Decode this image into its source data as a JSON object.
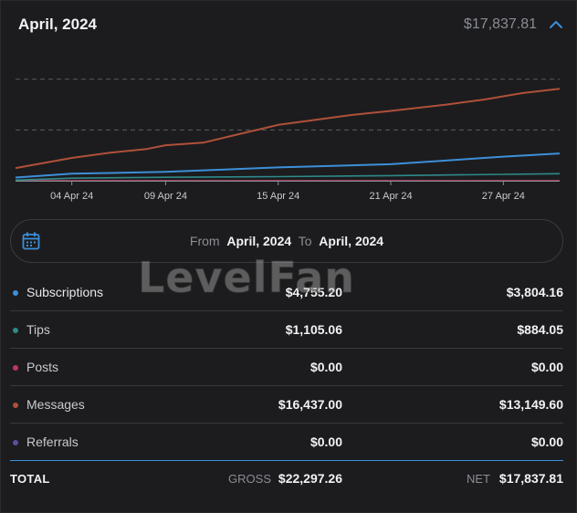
{
  "header": {
    "month": "April, 2024",
    "total": "$17,837.81",
    "collapse_icon": "chevron-up-icon"
  },
  "colors": {
    "subscriptions": "#3d8fd9",
    "tips": "#2f8a8a",
    "posts": "#c0395a",
    "messages": "#b0503a",
    "referrals": "#5a4fa0",
    "accent": "#3d8fd9"
  },
  "chart_data": {
    "type": "line",
    "x_ticks": [
      "04 Apr 24",
      "09 Apr 24",
      "15 Apr 24",
      "21 Apr 24",
      "27 Apr 24"
    ],
    "x_tick_days": [
      4,
      9,
      15,
      21,
      27
    ],
    "x_range": [
      1,
      30
    ],
    "ylim": [
      0,
      22000
    ],
    "gridlines_y": [
      8000,
      16000
    ],
    "series": [
      {
        "name": "Messages",
        "color": "#b0503a",
        "points": [
          [
            1,
            2000
          ],
          [
            4,
            3600
          ],
          [
            6,
            4400
          ],
          [
            8,
            5000
          ],
          [
            9,
            5600
          ],
          [
            11,
            6000
          ],
          [
            13,
            7400
          ],
          [
            15,
            8800
          ],
          [
            17,
            9600
          ],
          [
            19,
            10400
          ],
          [
            21,
            11000
          ],
          [
            24,
            12000
          ],
          [
            26,
            12800
          ],
          [
            28,
            13800
          ],
          [
            30,
            14500
          ]
        ]
      },
      {
        "name": "Subscriptions",
        "color": "#3d8fd9",
        "points": [
          [
            1,
            500
          ],
          [
            4,
            1100
          ],
          [
            9,
            1400
          ],
          [
            15,
            2100
          ],
          [
            21,
            2600
          ],
          [
            27,
            3800
          ],
          [
            30,
            4300
          ]
        ]
      },
      {
        "name": "Tips",
        "color": "#2f8a8a",
        "points": [
          [
            1,
            100
          ],
          [
            4,
            400
          ],
          [
            9,
            550
          ],
          [
            15,
            650
          ],
          [
            21,
            800
          ],
          [
            27,
            1000
          ],
          [
            30,
            1100
          ]
        ]
      },
      {
        "name": "Posts",
        "color": "#c0395a",
        "points": [
          [
            1,
            0
          ],
          [
            30,
            0
          ]
        ]
      },
      {
        "name": "Referrals",
        "color": "#5a4fa0",
        "points": [
          [
            1,
            0
          ],
          [
            30,
            0
          ]
        ]
      }
    ]
  },
  "range": {
    "from_label": "From",
    "from_value": "April, 2024",
    "to_label": "To",
    "to_value": "April, 2024",
    "calendar_icon": "calendar-icon"
  },
  "rows": [
    {
      "label": "Subscriptions",
      "gross": "$4,755.20",
      "net": "$3,804.16"
    },
    {
      "label": "Tips",
      "gross": "$1,105.06",
      "net": "$884.05"
    },
    {
      "label": "Posts",
      "gross": "$0.00",
      "net": "$0.00"
    },
    {
      "label": "Messages",
      "gross": "$16,437.00",
      "net": "$13,149.60"
    },
    {
      "label": "Referrals",
      "gross": "$0.00",
      "net": "$0.00"
    }
  ],
  "total": {
    "label": "TOTAL",
    "gross_label": "GROSS",
    "gross_value": "$22,297.26",
    "net_label": "NET",
    "net_value": "$17,837.81"
  },
  "watermark": "LevelFan"
}
